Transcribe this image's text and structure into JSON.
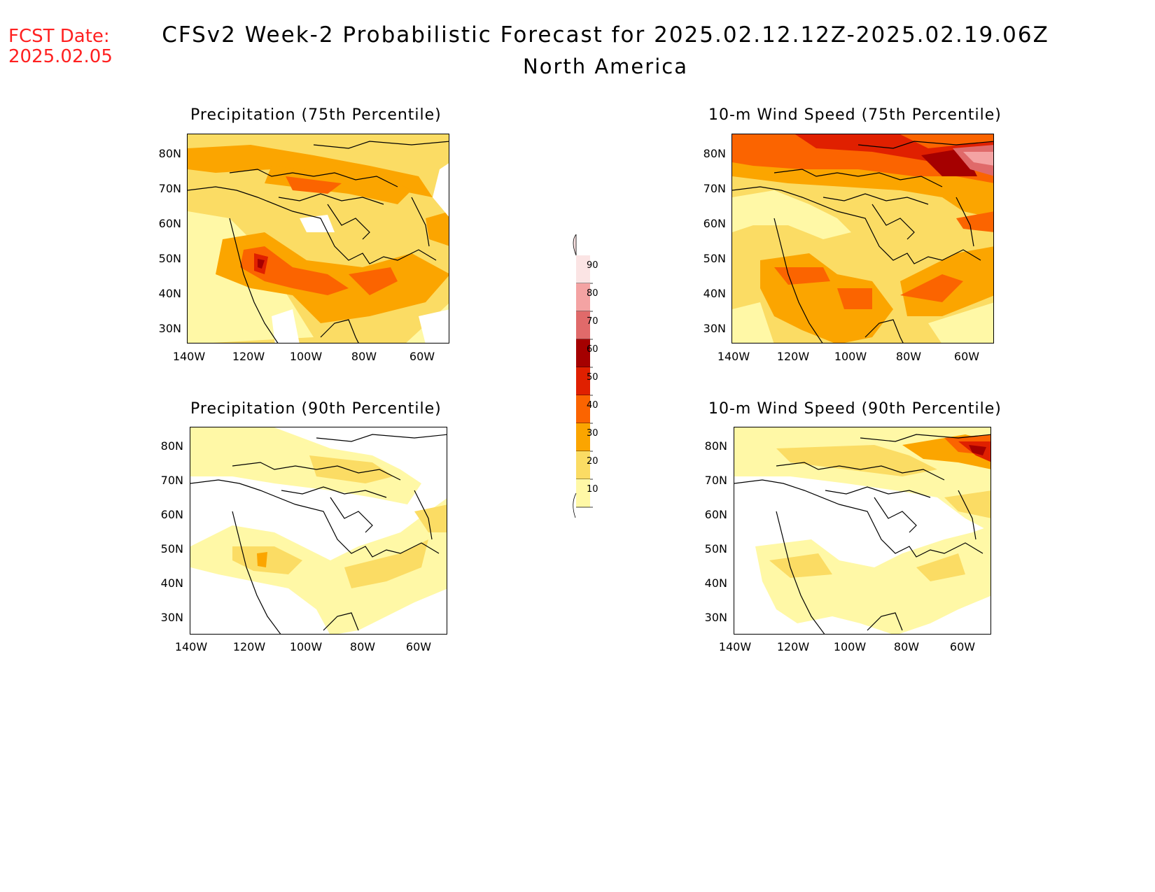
{
  "fcst": {
    "line1": "FCST Date:",
    "line2": "2025.02.05"
  },
  "title": {
    "main": "CFSv2 Week-2 Probabilistic Forecast for 2025.02.12.12Z-2025.02.19.06Z",
    "region": "North America"
  },
  "axes": {
    "lat_labels": [
      "80N",
      "70N",
      "60N",
      "50N",
      "40N",
      "30N"
    ],
    "lon_labels": [
      "140W",
      "120W",
      "100W",
      "80W",
      "60W"
    ]
  },
  "panels": [
    {
      "title": "Precipitation (75th Percentile)"
    },
    {
      "title": "10-m Wind Speed (75th Percentile)"
    },
    {
      "title": "Precipitation (90th Percentile)"
    },
    {
      "title": "10-m Wind Speed (90th Percentile)"
    }
  ],
  "colorbar": {
    "labels": [
      "90",
      "80",
      "70",
      "60",
      "50",
      "40",
      "30",
      "20",
      "10"
    ],
    "colors": [
      "#fbe4e4",
      "#f4a3a3",
      "#e06a6a",
      "#a50000",
      "#e02000",
      "#fb6400",
      "#fba500",
      "#fbdc64",
      "#fff8a6"
    ]
  }
}
